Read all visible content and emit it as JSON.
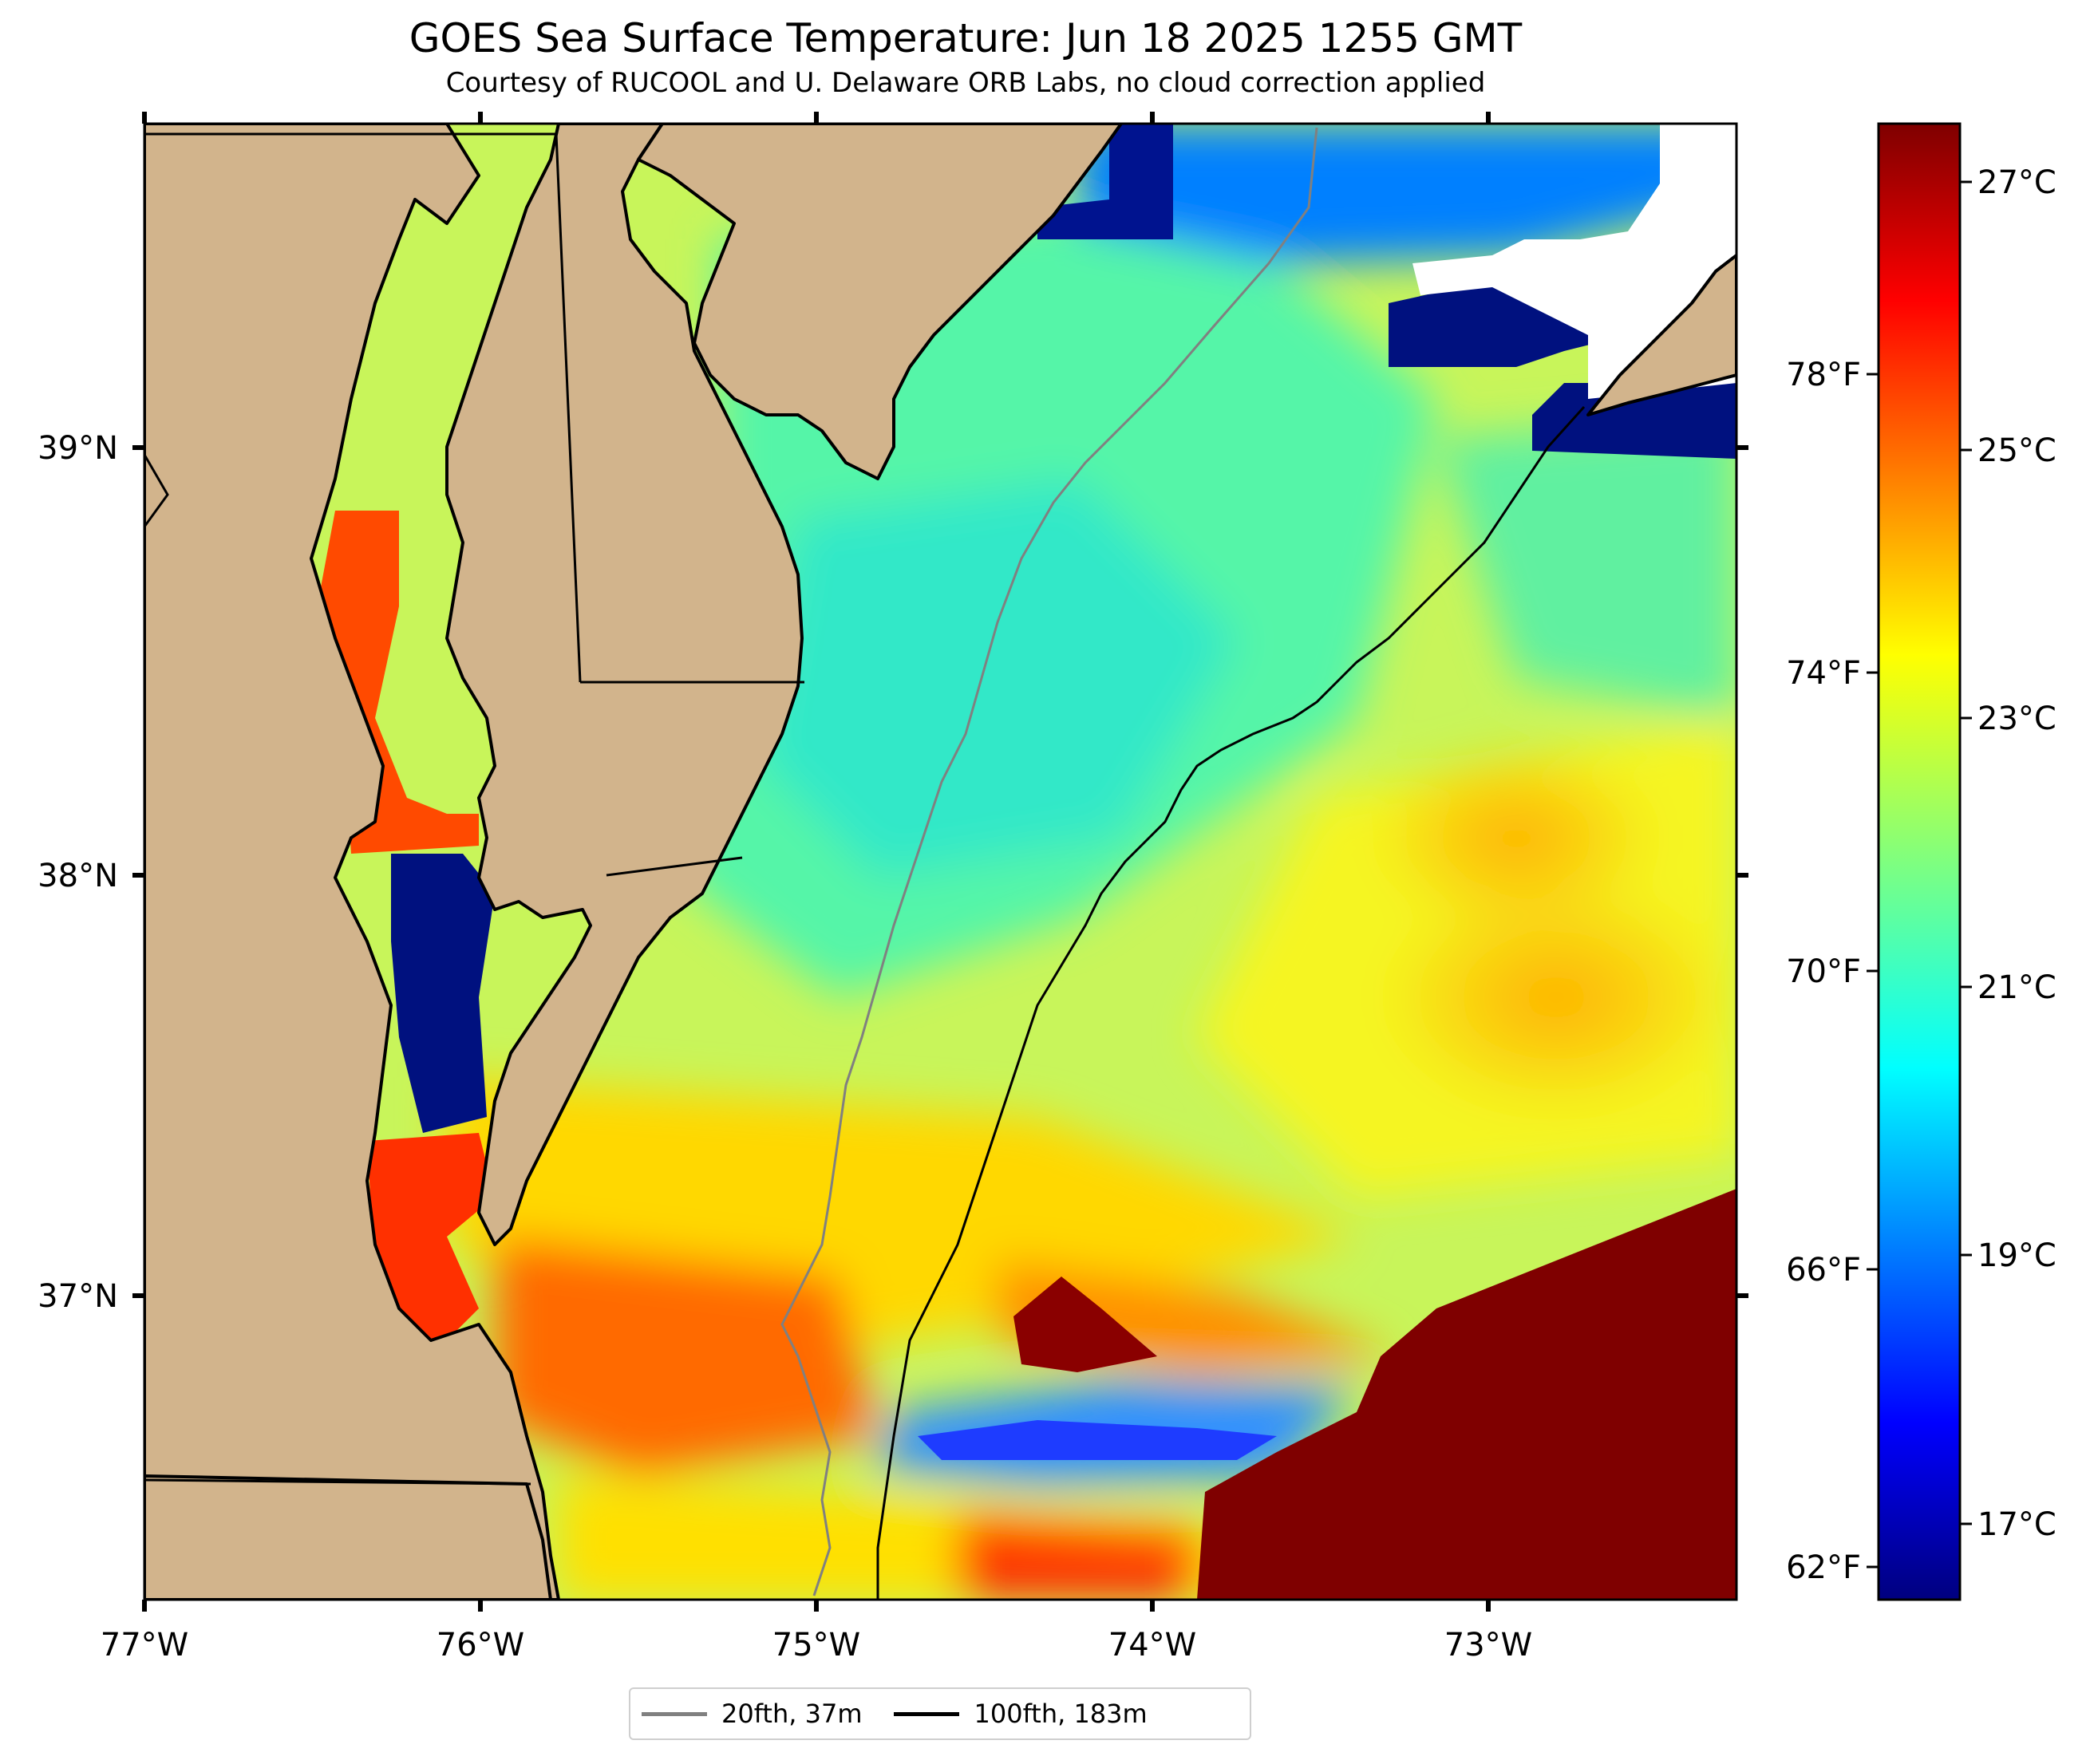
{
  "header": {
    "title": "GOES Sea Surface Temperature: Jun 18 2025 1255 GMT",
    "subtitle": "Courtesy of RUCOOL and U. Delaware ORB Labs, no cloud correction applied"
  },
  "axes": {
    "lon_labels": [
      "77°W",
      "76°W",
      "75°W",
      "74°W",
      "73°W"
    ],
    "lat_labels": [
      "39°N",
      "38°N",
      "37°N"
    ],
    "lon_range": [
      -77.0,
      -72.25
    ],
    "lat_range": [
      36.25,
      39.75
    ]
  },
  "colorbar": {
    "celsius_labels": [
      "27°C",
      "25°C",
      "23°C",
      "21°C",
      "19°C",
      "17°C"
    ],
    "fahrenheit_labels": [
      "78°F",
      "74°F",
      "70°F",
      "66°F",
      "62°F"
    ],
    "range_c": [
      16.5,
      27.5
    ],
    "colormap": "jet",
    "colors": [
      "#00007f",
      "#0000ff",
      "#007fff",
      "#00ffff",
      "#7fff7f",
      "#ffff00",
      "#ff7f00",
      "#ff0000",
      "#7f0000"
    ]
  },
  "legend": {
    "items": [
      {
        "label": "20fth, 37m",
        "color": "#808080"
      },
      {
        "label": "100fth, 183m",
        "color": "#000000"
      }
    ]
  },
  "colors": {
    "land": "#d2b48c",
    "water_nodata": "#ffffff",
    "contour_20fth": "#808080",
    "contour_100fth": "#000000"
  }
}
